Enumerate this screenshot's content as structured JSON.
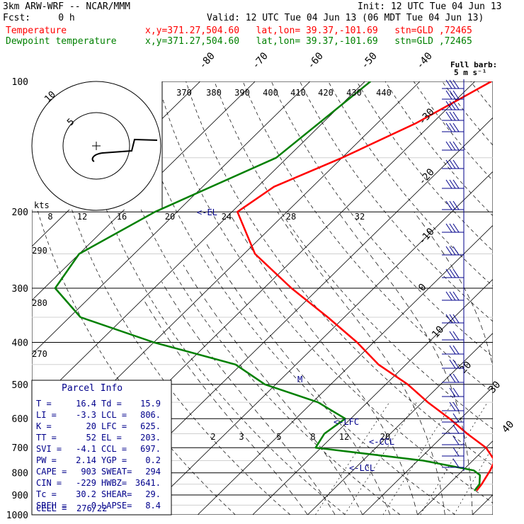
{
  "header": {
    "model": "3km ARW-WRF -- NCAR/MMM",
    "init": "Init: 12 UTC Tue 04 Jun 13",
    "fcst": "Fcst:     0 h",
    "valid": "Valid: 12 UTC Tue 04 Jun 13 (06 MDT Tue 04 Jun 13)",
    "temp_label": "Temperature",
    "dew_label": "Dewpoint temperature",
    "location": "x,y=371.27,504.60   lat,lon= 39.37,-101.69   stn=GLD ,72465",
    "barb_note_1": "Full barb:",
    "barb_note_2": "5 m s⁻¹"
  },
  "colors": {
    "temperature": "#ff0000",
    "dewpoint": "#008000",
    "grid": "#000000",
    "wind": "#00008b"
  },
  "chart_data": {
    "type": "line",
    "chart_kind": "skew-T log-P thermodynamic diagram",
    "pressure_levels": [
      100,
      200,
      300,
      400,
      500,
      600,
      700,
      800,
      900,
      1000
    ],
    "isotherm_labels": [
      "-80",
      "-70",
      "-60",
      "-50",
      "-40",
      "-30",
      "-20",
      "-10",
      "0",
      "10",
      "20",
      "30",
      "40"
    ],
    "theta_labels": [
      "370",
      "380",
      "390",
      "400",
      "410",
      "420",
      "430",
      "440"
    ],
    "hodograph_speed_labels": [
      "8",
      "12",
      "16",
      "20",
      "24",
      "28",
      "32"
    ],
    "mixing_ratio_labels": [
      "2",
      "3",
      "5",
      "8",
      "12",
      "20"
    ],
    "adiabat_labels": [
      "290",
      "280",
      "270"
    ],
    "hodograph": {
      "unit": "kts",
      "ring_labels": [
        "5",
        "10"
      ]
    },
    "markers": {
      "el": "<-EL",
      "lfc": "<-LFC",
      "ccl": "<-CCL",
      "lcl": "<-LCL",
      "m": "M"
    },
    "series": [
      {
        "name": "Temperature",
        "points": [
          [
            100,
            -57
          ],
          [
            125,
            -63
          ],
          [
            150,
            -70
          ],
          [
            175,
            -77
          ],
          [
            200,
            -79
          ],
          [
            250,
            -68
          ],
          [
            300,
            -55
          ],
          [
            350,
            -43
          ],
          [
            400,
            -33
          ],
          [
            450,
            -25
          ],
          [
            500,
            -16
          ],
          [
            550,
            -9
          ],
          [
            600,
            -2
          ],
          [
            650,
            4
          ],
          [
            700,
            10
          ],
          [
            750,
            14
          ],
          [
            790,
            15
          ],
          [
            820,
            15.5
          ],
          [
            850,
            16
          ],
          [
            880,
            16.3
          ]
        ]
      },
      {
        "name": "Dewpoint temperature",
        "points": [
          [
            100,
            -79
          ],
          [
            150,
            -82
          ],
          [
            200,
            -94
          ],
          [
            250,
            -100
          ],
          [
            300,
            -98
          ],
          [
            350,
            -88
          ],
          [
            400,
            -70
          ],
          [
            450,
            -51
          ],
          [
            500,
            -42
          ],
          [
            550,
            -29
          ],
          [
            600,
            -21
          ],
          [
            650,
            -22
          ],
          [
            700,
            -21
          ],
          [
            750,
            1
          ],
          [
            790,
            12
          ],
          [
            810,
            14
          ],
          [
            850,
            15.6
          ],
          [
            880,
            15.9
          ]
        ]
      }
    ],
    "parcel_info": {
      "title": "Parcel Info",
      "rows": [
        [
          "T   =",
          "16.4",
          "Td  =",
          "15.9"
        ],
        [
          "LI  =",
          "-3.3",
          "LCL =",
          "806."
        ],
        [
          "K   =",
          "20",
          "LFC =",
          "625."
        ],
        [
          "TT  =",
          "52",
          "EL  =",
          "203."
        ],
        [
          "SVI =",
          "-4.1",
          "CCL =",
          "697."
        ],
        [
          "PW  =",
          "2.14",
          "YGP =",
          "0.2"
        ],
        [
          "CAPE =",
          "903",
          "SWEAT=",
          "294"
        ],
        [
          "CIN  =",
          "-229",
          "HWBZ=",
          "3641."
        ],
        [
          "Tc   =",
          "30.2",
          "SHEAR=",
          "29."
        ],
        [
          "SREH =",
          "0",
          "LAPSE=",
          "8.4"
        ]
      ],
      "cell_label": "CELL =",
      "cell_value": "276/22"
    }
  }
}
